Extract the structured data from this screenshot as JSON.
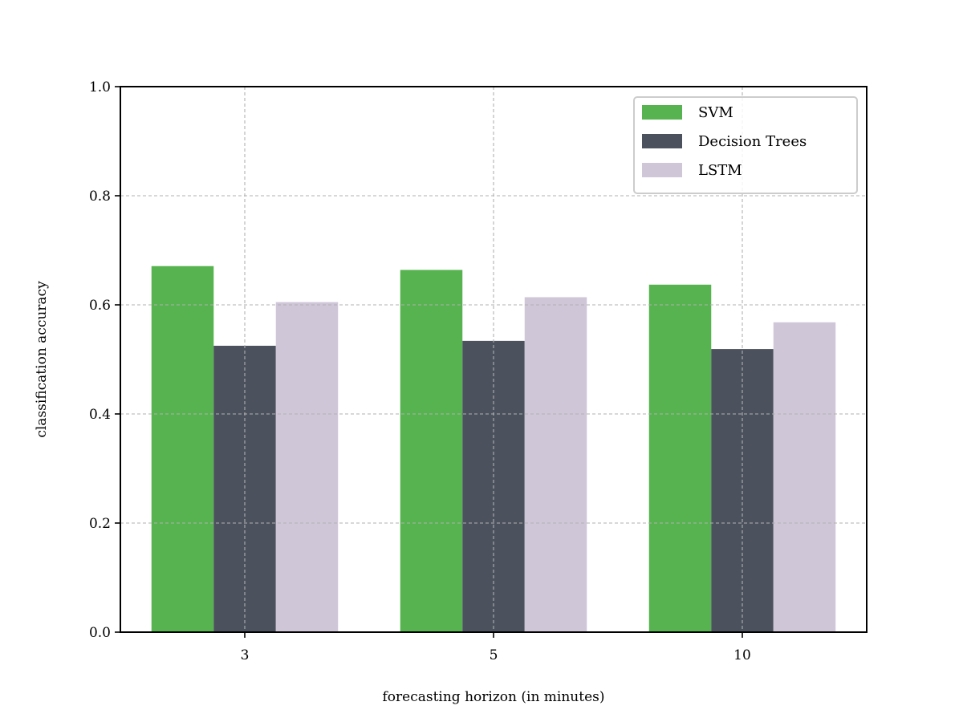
{
  "chart_data": {
    "type": "bar",
    "title": "",
    "xlabel": "forecasting horizon (in minutes)",
    "ylabel": "classification accuracy",
    "categories": [
      "3",
      "5",
      "10"
    ],
    "series": [
      {
        "name": "SVM",
        "color": "#56b34f",
        "values": [
          0.671,
          0.664,
          0.637
        ]
      },
      {
        "name": "Decision Trees",
        "color": "#4b525e",
        "values": [
          0.525,
          0.534,
          0.519
        ]
      },
      {
        "name": "LSTM",
        "color": "#cfc6d8",
        "values": [
          0.605,
          0.614,
          0.568
        ]
      }
    ],
    "ylim": [
      0,
      1.0
    ],
    "yticks": [
      0.0,
      0.2,
      0.4,
      0.6,
      0.8,
      1.0
    ],
    "ytick_labels": [
      "0.0",
      "0.2",
      "0.4",
      "0.6",
      "0.8",
      "1.0"
    ],
    "grid": true,
    "grid_style": "dashed",
    "legend_position": "top-right"
  }
}
